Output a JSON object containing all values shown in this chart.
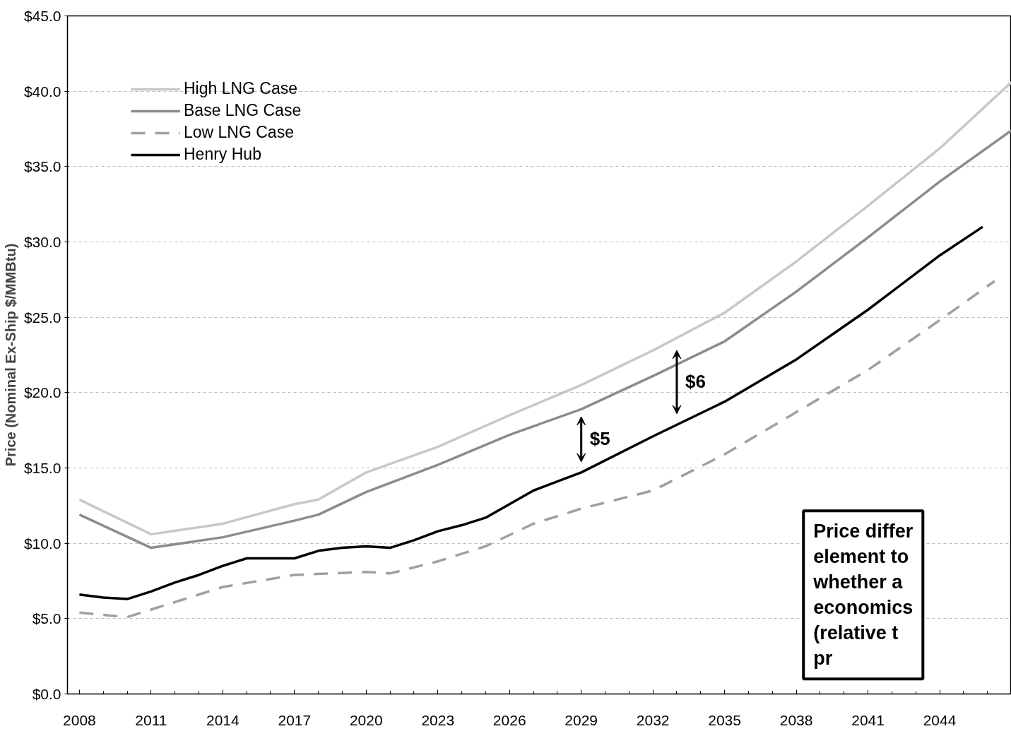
{
  "chart_data": {
    "type": "line",
    "ylabel": "Price (Nominal Ex-Ship $/MMBtu)",
    "xlim": [
      2007.5,
      2047
    ],
    "xticks": [
      2008,
      2011,
      2014,
      2017,
      2020,
      2023,
      2026,
      2029,
      2032,
      2035,
      2038,
      2041,
      2044
    ],
    "ylim": [
      0,
      45
    ],
    "yticks": [
      {
        "value": 0,
        "label": "$0.0"
      },
      {
        "value": 5,
        "label": "$5.0"
      },
      {
        "value": 10,
        "label": "$10.0"
      },
      {
        "value": 15,
        "label": "$15.0"
      },
      {
        "value": 20,
        "label": "$20.0"
      },
      {
        "value": 25,
        "label": "$25.0"
      },
      {
        "value": 30,
        "label": "$30.0"
      },
      {
        "value": 35,
        "label": "$35.0"
      },
      {
        "value": 40,
        "label": "$40.0"
      },
      {
        "value": 45,
        "label": "$45.0"
      }
    ],
    "grid": "y",
    "legend": "top left",
    "series": [
      {
        "name": "High LNG Case",
        "color": "#c8c8c8",
        "line_style": "solid",
        "x": [
          2008,
          2011,
          2014,
          2017,
          2018,
          2020,
          2023,
          2026,
          2029,
          2032,
          2035,
          2038,
          2041,
          2044,
          2047
        ],
        "values": [
          12.9,
          10.6,
          11.3,
          12.6,
          12.9,
          14.7,
          16.4,
          18.5,
          20.5,
          22.8,
          25.3,
          28.7,
          32.4,
          36.2,
          40.6
        ]
      },
      {
        "name": "Base LNG Case",
        "color": "#8c8c8c",
        "line_style": "solid",
        "x": [
          2008,
          2011,
          2014,
          2017,
          2018,
          2020,
          2023,
          2026,
          2029,
          2032,
          2035,
          2038,
          2041,
          2044,
          2047
        ],
        "values": [
          11.9,
          9.7,
          10.4,
          11.5,
          11.9,
          13.4,
          15.2,
          17.2,
          18.9,
          21.1,
          23.4,
          26.7,
          30.3,
          34.0,
          37.4
        ]
      },
      {
        "name": "Low LNG Case",
        "color": "#a0a0a0",
        "line_style": "dashed",
        "x": [
          2008,
          2010,
          2011,
          2014,
          2017,
          2020,
          2021,
          2023,
          2025,
          2027,
          2029,
          2032,
          2035,
          2038,
          2041,
          2044,
          2046.3
        ],
        "values": [
          5.4,
          5.1,
          5.6,
          7.1,
          7.9,
          8.1,
          8.0,
          8.8,
          9.8,
          11.3,
          12.3,
          13.5,
          15.9,
          18.7,
          21.5,
          24.8,
          27.4
        ]
      },
      {
        "name": "Henry Hub",
        "color": "#000000",
        "line_style": "solid",
        "x": [
          2008,
          2009,
          2010,
          2011,
          2012,
          2013,
          2014,
          2015,
          2016,
          2017,
          2018,
          2019,
          2020,
          2021,
          2022,
          2023,
          2024,
          2025,
          2026,
          2027,
          2028,
          2029,
          2032,
          2035,
          2038,
          2041,
          2044,
          2045.8
        ],
        "values": [
          6.6,
          6.4,
          6.3,
          6.8,
          7.4,
          7.9,
          8.5,
          9.0,
          9.0,
          9.0,
          9.5,
          9.7,
          9.8,
          9.7,
          10.2,
          10.8,
          11.2,
          11.7,
          12.6,
          13.5,
          14.1,
          14.7,
          17.1,
          19.4,
          22.2,
          25.5,
          29.1,
          31.0
        ]
      }
    ],
    "annotations": [
      "$5",
      "$6",
      "Price differ\nelement to\nwhether a\neconomics\n(relative t\npr"
    ]
  }
}
